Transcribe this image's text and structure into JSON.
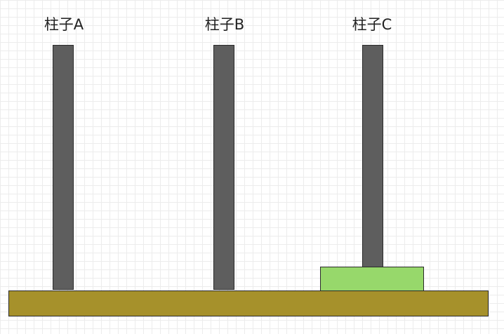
{
  "pegs": [
    {
      "label": "柱子A"
    },
    {
      "label": "柱子B"
    },
    {
      "label": "柱子C"
    }
  ],
  "colors": {
    "peg": "#5e5e5e",
    "disk": "#97d86b",
    "base": "#a6912b"
  },
  "disks": [
    {
      "peg_index": 2,
      "stack_level": 1
    }
  ]
}
